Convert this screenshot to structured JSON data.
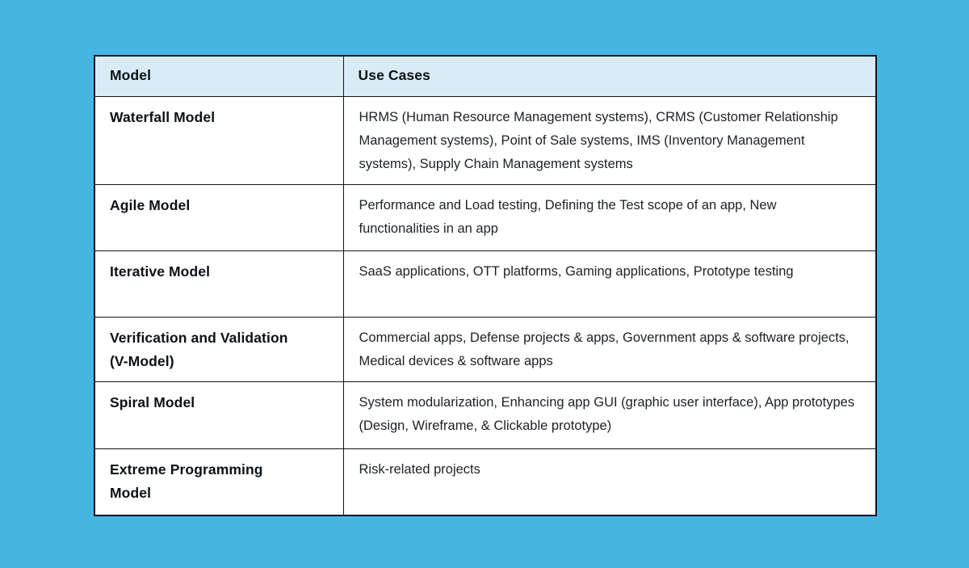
{
  "page": {
    "background_color": "#45b6e2",
    "header_background_color": "#d9ecf6",
    "border_color": "#10161d",
    "text_color": "#1d2126"
  },
  "table": {
    "headers": [
      "Model",
      "Use Cases"
    ],
    "rows": [
      {
        "model": "Waterfall Model",
        "use_cases": "HRMS (Human Resource Management systems), CRMS (Customer Relationship Management systems), Point of Sale systems, IMS (Inventory Management systems), Supply Chain Management systems"
      },
      {
        "model": "Agile Model",
        "use_cases": "Performance and Load testing, Defining the Test scope of an app, New functionalities in an app"
      },
      {
        "model": "Iterative Model",
        "use_cases": "SaaS applications, OTT platforms, Gaming applications, Prototype testing"
      },
      {
        "model": "Verification and Validation\n(V-Model)",
        "use_cases": "Commercial apps, Defense projects & apps, Government apps & software projects, Medical devices & software apps"
      },
      {
        "model": "Spiral Model",
        "use_cases": "System modularization, Enhancing app GUI (graphic user interface), App prototypes (Design, Wireframe, & Clickable prototype)"
      },
      {
        "model": "Extreme Programming\nModel",
        "use_cases": "Risk-related projects"
      }
    ]
  }
}
